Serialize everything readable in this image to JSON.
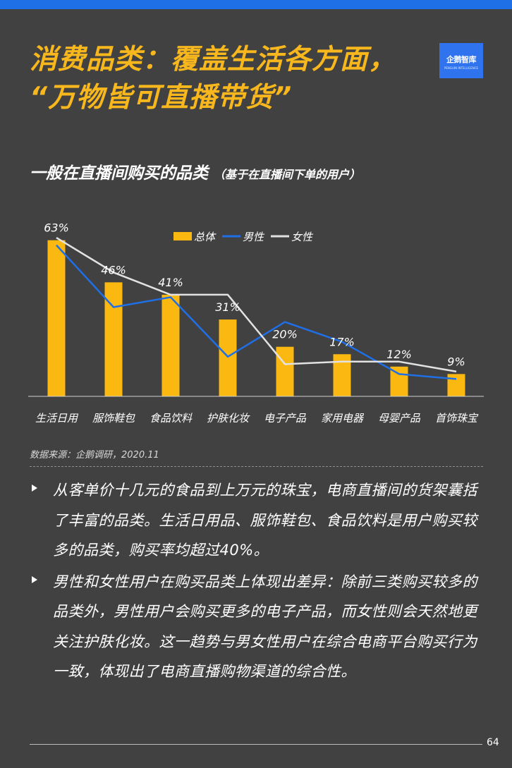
{
  "header": {
    "title_line1": "消费品类：覆盖生活各方面，",
    "title_line2": "“万物皆可直播带货”",
    "logo_text": "企鹅智库",
    "logo_sub": "PENGUIN INTELLIGENCE"
  },
  "chart_title": {
    "main": "一般在直播间购买的品类",
    "sub": "（基于在直播间下单的用户）"
  },
  "chart_data": {
    "type": "bar",
    "categories": [
      "生活日用",
      "服饰鞋包",
      "食品饮料",
      "护肤化妆",
      "电子产品",
      "家用电器",
      "母婴产品",
      "首饰珠宝"
    ],
    "series": [
      {
        "name": "总体",
        "kind": "bar",
        "values": [
          63,
          46,
          41,
          31,
          20,
          17,
          12,
          9
        ],
        "color": "#fbb811",
        "data_labels": [
          "63%",
          "46%",
          "41%",
          "31%",
          "20%",
          "17%",
          "12%",
          "9%"
        ]
      },
      {
        "name": "男性",
        "kind": "line",
        "values": [
          61,
          36,
          40,
          16,
          30,
          22,
          9,
          7
        ],
        "color": "#1f6fe6"
      },
      {
        "name": "女性",
        "kind": "line",
        "values": [
          64,
          50,
          41,
          41,
          13,
          14,
          14,
          10
        ],
        "color": "#e2e2e2"
      }
    ],
    "ylim": [
      0,
      70
    ],
    "legend_position": "top-center",
    "grid": false
  },
  "source": "数据来源：企鹅调研，2020.11",
  "bullets": [
    "从客单价十几元的食品到上万元的珠宝，电商直播间的货架囊括了丰富的品类。生活日用品、服饰鞋包、食品饮料是用户购买较多的品类，购买率均超过40%。",
    "男性和女性用户在购买品类上体现出差异：除前三类购买较多的品类外，男性用户会购买更多的电子产品，而女性则会天然地更关注护肤化妆。这一趋势与男女性用户在综合电商平台购买行为一致，体现出了电商直播购物渠道的综合性。"
  ],
  "page_number": "64"
}
